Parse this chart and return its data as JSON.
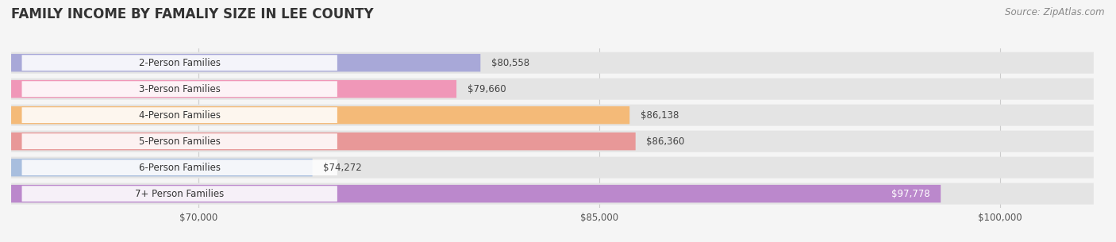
{
  "title": "FAMILY INCOME BY FAMALIY SIZE IN LEE COUNTY",
  "source": "Source: ZipAtlas.com",
  "categories": [
    "2-Person Families",
    "3-Person Families",
    "4-Person Families",
    "5-Person Families",
    "6-Person Families",
    "7+ Person Families"
  ],
  "values": [
    80558,
    79660,
    86138,
    86360,
    74272,
    97778
  ],
  "bar_colors": [
    "#a8a8d8",
    "#f097b8",
    "#f4ba78",
    "#e89898",
    "#a8bede",
    "#bb88cc"
  ],
  "label_texts": [
    "$80,558",
    "$79,660",
    "$86,138",
    "$86,360",
    "$74,272",
    "$97,778"
  ],
  "label_colors": [
    "#444444",
    "#444444",
    "#444444",
    "#444444",
    "#444444",
    "#ffffff"
  ],
  "x_ticks": [
    70000,
    85000,
    100000
  ],
  "x_tick_labels": [
    "$70,000",
    "$85,000",
    "$100,000"
  ],
  "xmin": 63000,
  "xmax": 103500,
  "background_color": "#f5f5f5",
  "bar_bg_color": "#e4e4e4",
  "title_fontsize": 12,
  "bar_label_fontsize": 8.5,
  "category_fontsize": 8.5,
  "source_fontsize": 8.5
}
